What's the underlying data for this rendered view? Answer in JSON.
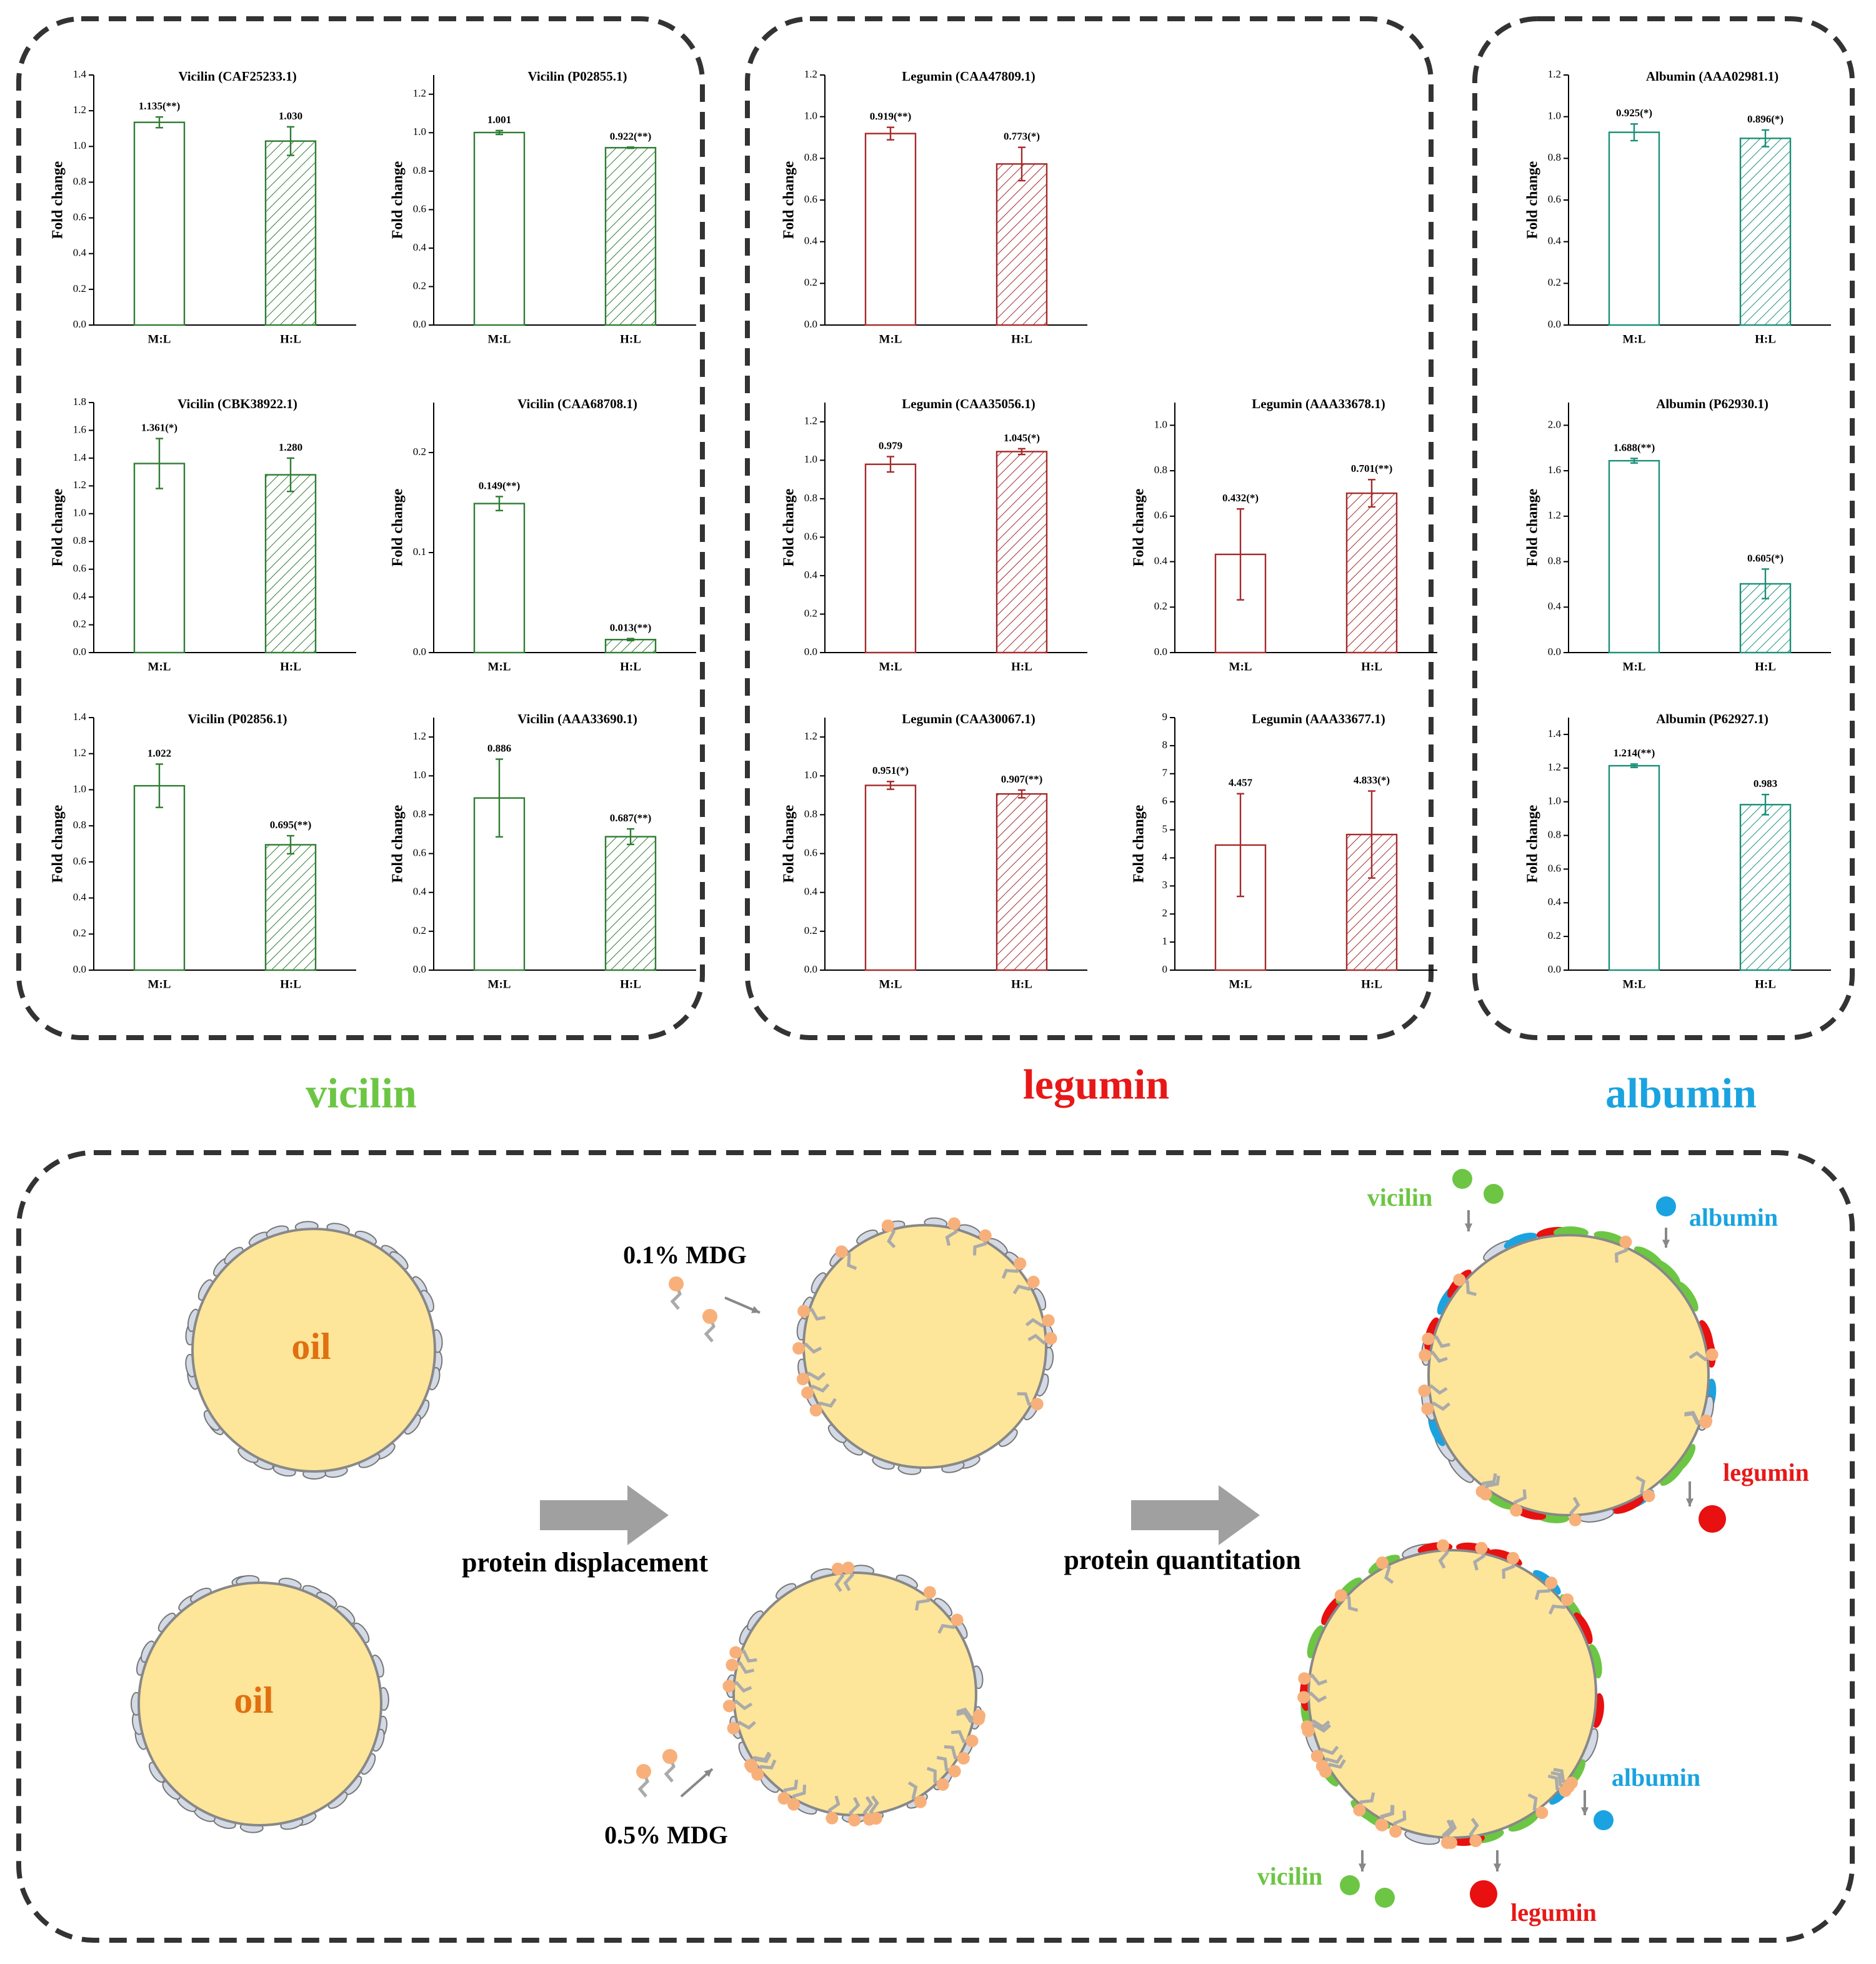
{
  "chart_data": [
    {
      "type": "bar",
      "title": "Vicilin (CAF25233.1)",
      "ylabel": "Fold change",
      "categories": [
        "M:L",
        "H:L"
      ],
      "values": [
        1.135,
        1.03
      ],
      "errors": [
        0.03,
        0.08
      ],
      "value_labels": [
        "1.135(**)",
        "1.030"
      ],
      "hatch": [
        false,
        true
      ],
      "color": "#2e7d32",
      "ylim": [
        0,
        1.4
      ],
      "yticks": [
        {
          "value": 0,
          "label": "0.0"
        },
        0.2,
        0.4,
        0.6,
        0.8,
        {
          "value": 1,
          "label": "1.0"
        },
        1.2,
        1.4
      ]
    },
    {
      "type": "bar",
      "title": "Vicilin (P02855.1)",
      "ylabel": "Fold change",
      "categories": [
        "M:L",
        "H:L"
      ],
      "values": [
        1.001,
        0.922
      ],
      "errors": [
        0.01,
        0.003
      ],
      "value_labels": [
        "1.001",
        "0.922(**)"
      ],
      "hatch": [
        false,
        true
      ],
      "color": "#2e7d32",
      "ylim": [
        0,
        1.3
      ],
      "yticks": [
        {
          "value": 0,
          "label": "0.0"
        },
        0.2,
        0.4,
        0.6,
        0.8,
        {
          "value": 1,
          "label": "1.0"
        },
        1.2
      ]
    },
    {
      "type": "bar",
      "title": "Vicilin (CBK38922.1)",
      "ylabel": "Fold change",
      "categories": [
        "M:L",
        "H:L"
      ],
      "values": [
        1.361,
        1.28
      ],
      "errors": [
        0.18,
        0.12
      ],
      "value_labels": [
        "1.361(*)",
        "1.280"
      ],
      "hatch": [
        false,
        true
      ],
      "color": "#2e7d32",
      "ylim": [
        0,
        1.8
      ],
      "yticks": [
        {
          "value": 0,
          "label": "0.0"
        },
        0.2,
        0.4,
        0.6,
        0.8,
        {
          "value": 1,
          "label": "1.0"
        },
        1.2,
        1.4,
        1.6,
        1.8
      ]
    },
    {
      "type": "bar",
      "title": "Vicilin (CAA68708.1)",
      "ylabel": "Fold change",
      "categories": [
        "M:L",
        "H:L"
      ],
      "values": [
        0.149,
        0.013
      ],
      "errors": [
        0.007,
        0.001
      ],
      "value_labels": [
        "0.149(**)",
        "0.013(**)"
      ],
      "hatch": [
        false,
        true
      ],
      "color": "#2e7d32",
      "ylim": [
        0,
        0.25
      ],
      "yticks": [
        {
          "value": 0,
          "label": "0.0"
        },
        0.1,
        0.2
      ]
    },
    {
      "type": "bar",
      "title": "Vicilin (P02856.1)",
      "ylabel": "Fold change",
      "categories": [
        "M:L",
        "H:L"
      ],
      "values": [
        1.022,
        0.695
      ],
      "errors": [
        0.12,
        0.05
      ],
      "value_labels": [
        "1.022",
        "0.695(**)"
      ],
      "hatch": [
        false,
        true
      ],
      "color": "#2e7d32",
      "ylim": [
        0,
        1.4
      ],
      "yticks": [
        {
          "value": 0,
          "label": "0.0"
        },
        0.2,
        0.4,
        0.6,
        0.8,
        {
          "value": 1,
          "label": "1.0"
        },
        1.2,
        1.4
      ]
    },
    {
      "type": "bar",
      "title": "Vicilin (AAA33690.1)",
      "ylabel": "Fold change",
      "categories": [
        "M:L",
        "H:L"
      ],
      "values": [
        0.886,
        0.687
      ],
      "errors": [
        0.2,
        0.04
      ],
      "value_labels": [
        "0.886",
        "0.687(**)"
      ],
      "hatch": [
        false,
        true
      ],
      "color": "#2e7d32",
      "ylim": [
        0,
        1.3
      ],
      "yticks": [
        {
          "value": 0,
          "label": "0.0"
        },
        0.2,
        0.4,
        0.6,
        0.8,
        {
          "value": 1,
          "label": "1.0"
        },
        1.2
      ]
    },
    {
      "type": "bar",
      "title": "Legumin (CAA47809.1)",
      "ylabel": "Fold change",
      "categories": [
        "M:L",
        "H:L"
      ],
      "values": [
        0.919,
        0.773
      ],
      "errors": [
        0.03,
        0.08
      ],
      "value_labels": [
        "0.919(**)",
        "0.773(*)"
      ],
      "hatch": [
        false,
        true
      ],
      "color": "#a52a2a",
      "ylim": [
        0,
        1.2
      ],
      "yticks": [
        {
          "value": 0,
          "label": "0.0"
        },
        0.2,
        0.4,
        0.6,
        0.8,
        {
          "value": 1,
          "label": "1.0"
        },
        1.2
      ]
    },
    {
      "type": "bar",
      "title": "Legumin (CAA35056.1)",
      "ylabel": "Fold change",
      "categories": [
        "M:L",
        "H:L"
      ],
      "values": [
        0.979,
        1.045
      ],
      "errors": [
        0.04,
        0.015
      ],
      "value_labels": [
        "0.979",
        "1.045(*)"
      ],
      "hatch": [
        false,
        true
      ],
      "color": "#a52a2a",
      "ylim": [
        0,
        1.3
      ],
      "yticks": [
        {
          "value": 0,
          "label": "0.0"
        },
        0.2,
        0.4,
        0.6,
        0.8,
        {
          "value": 1,
          "label": "1.0"
        },
        1.2
      ]
    },
    {
      "type": "bar",
      "title": "Legumin (AAA33678.1)",
      "ylabel": "Fold change",
      "categories": [
        "M:L",
        "H:L"
      ],
      "values": [
        0.432,
        0.701
      ],
      "errors": [
        0.2,
        0.06
      ],
      "value_labels": [
        "0.432(*)",
        "0.701(**)"
      ],
      "hatch": [
        false,
        true
      ],
      "color": "#a52a2a",
      "ylim": [
        0,
        1.1
      ],
      "yticks": [
        {
          "value": 0,
          "label": "0.0"
        },
        0.2,
        0.4,
        0.6,
        0.8,
        {
          "value": 1,
          "label": "1.0"
        }
      ]
    },
    {
      "type": "bar",
      "title": "Legumin (CAA30067.1)",
      "ylabel": "Fold change",
      "categories": [
        "M:L",
        "H:L"
      ],
      "values": [
        0.951,
        0.907
      ],
      "errors": [
        0.02,
        0.02
      ],
      "value_labels": [
        "0.951(*)",
        "0.907(**)"
      ],
      "hatch": [
        false,
        true
      ],
      "color": "#a52a2a",
      "ylim": [
        0,
        1.3
      ],
      "yticks": [
        {
          "value": 0,
          "label": "0.0"
        },
        0.2,
        0.4,
        0.6,
        0.8,
        {
          "value": 1,
          "label": "1.0"
        },
        1.2
      ]
    },
    {
      "type": "bar",
      "title": "Legumin (AAA33677.1)",
      "ylabel": "Fold change",
      "categories": [
        "M:L",
        "H:L"
      ],
      "values": [
        4.457,
        4.833
      ],
      "errors": [
        1.83,
        1.55
      ],
      "value_labels": [
        "4.457",
        "4.833(*)"
      ],
      "hatch": [
        false,
        true
      ],
      "color": "#a52a2a",
      "ylim": [
        0,
        9
      ],
      "yticks": [
        0,
        1,
        2,
        3,
        4,
        5,
        6,
        7,
        8,
        9
      ]
    },
    {
      "type": "bar",
      "title": "Albumin (AAA02981.1)",
      "ylabel": "Fold change",
      "categories": [
        "M:L",
        "H:L"
      ],
      "values": [
        0.925,
        0.896
      ],
      "errors": [
        0.04,
        0.04
      ],
      "value_labels": [
        "0.925(*)",
        "0.896(*)"
      ],
      "hatch": [
        false,
        true
      ],
      "color": "#1a8f78",
      "ylim": [
        0,
        1.2
      ],
      "yticks": [
        {
          "value": 0,
          "label": "0.0"
        },
        0.2,
        0.4,
        0.6,
        0.8,
        {
          "value": 1,
          "label": "1.0"
        },
        1.2
      ]
    },
    {
      "type": "bar",
      "title": "Albumin (P62930.1)",
      "ylabel": "Fold change",
      "categories": [
        "M:L",
        "H:L"
      ],
      "values": [
        1.688,
        0.605
      ],
      "errors": [
        0.02,
        0.13
      ],
      "value_labels": [
        "1.688(**)",
        "0.605(*)"
      ],
      "hatch": [
        false,
        true
      ],
      "color": "#1a8f78",
      "ylim": [
        0,
        2.2
      ],
      "yticks": [
        {
          "value": 0,
          "label": "0.0"
        },
        0.4,
        0.8,
        1.2,
        1.6,
        {
          "value": 2,
          "label": "2.0"
        }
      ]
    },
    {
      "type": "bar",
      "title": "Albumin (P62927.1)",
      "ylabel": "Fold change",
      "categories": [
        "M:L",
        "H:L"
      ],
      "values": [
        1.214,
        0.983
      ],
      "errors": [
        0.01,
        0.06
      ],
      "value_labels": [
        "1.214(**)",
        "0.983"
      ],
      "hatch": [
        false,
        true
      ],
      "color": "#1a8f78",
      "ylim": [
        0,
        1.5
      ],
      "yticks": [
        {
          "value": 0,
          "label": "0.0"
        },
        0.2,
        0.4,
        0.6,
        0.8,
        {
          "value": 1,
          "label": "1.0"
        },
        1.2,
        1.4
      ]
    }
  ],
  "group_labels": [
    "vicilin",
    "legumin",
    "albumin"
  ],
  "diagram": {
    "oil_labels": [
      "oil",
      "oil"
    ],
    "steps": [
      "protein displacement",
      "protein quantitation"
    ],
    "mdg_labels": [
      "0.1% MDG",
      "0.5% MDG"
    ],
    "protein_labels": [
      "vicilin",
      "albumin",
      "legumin",
      "albumin",
      "vicilin",
      "legumin"
    ]
  }
}
